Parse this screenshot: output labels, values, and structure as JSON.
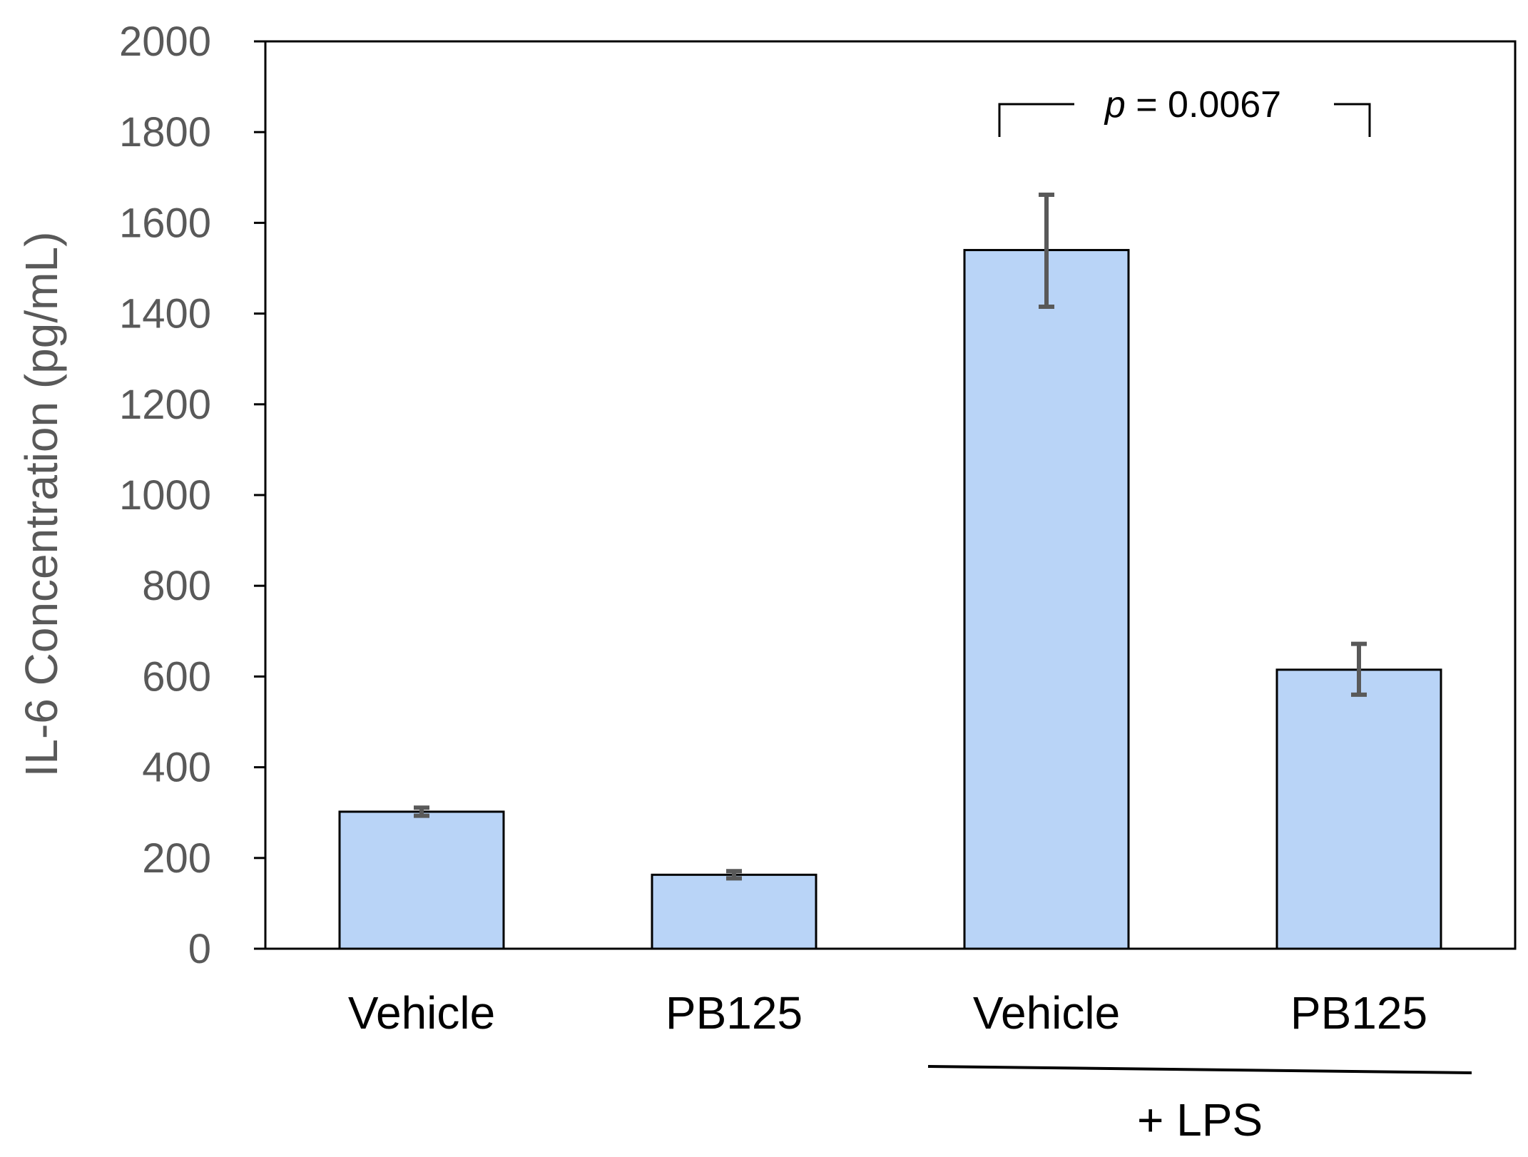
{
  "chart_data": {
    "type": "bar",
    "categories": [
      "Vehicle",
      "PB125",
      "Vehicle",
      "PB125"
    ],
    "values": [
      302,
      163,
      1540,
      615
    ],
    "error_low": [
      293,
      155,
      1415,
      560
    ],
    "error_high": [
      311,
      171,
      1662,
      672
    ],
    "ylabel": "IL-6 Concentration (pg/mL)",
    "ylim": [
      0,
      2000
    ],
    "yticks": [
      "0",
      "200",
      "400",
      "600",
      "800",
      "1000",
      "1200",
      "1400",
      "1600",
      "1800",
      "2000"
    ],
    "ytick_values": [
      0,
      200,
      400,
      600,
      800,
      1000,
      1200,
      1400,
      1600,
      1800,
      2000
    ],
    "group_label": "+ LPS",
    "group_categories": [
      2,
      3
    ],
    "significance": {
      "italic": "p",
      "rest": " = 0.0067",
      "between": [
        2,
        3
      ]
    },
    "grid": false,
    "legend": false,
    "colors": {
      "bar_fill": "#b9d4f7",
      "bar_stroke": "#000000",
      "error_bar": "#595959",
      "tick_text": "#595959"
    }
  }
}
